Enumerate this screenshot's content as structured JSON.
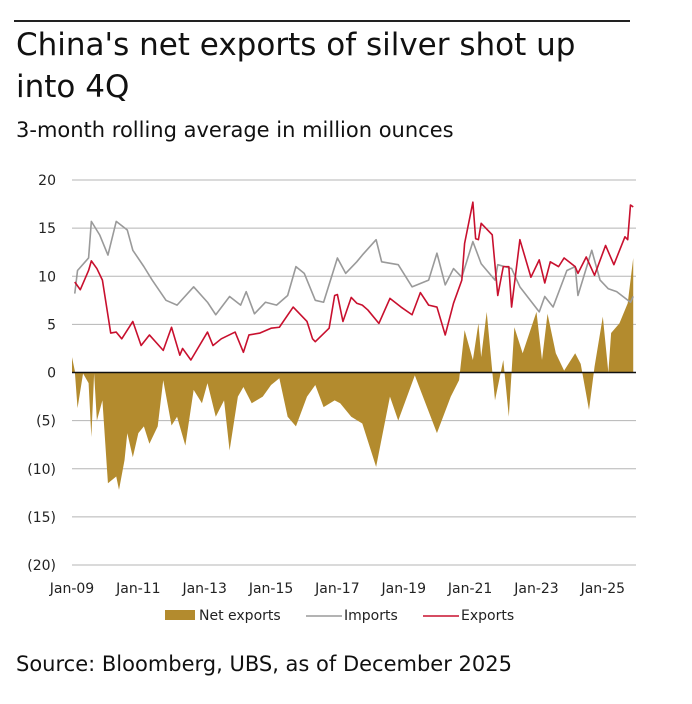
{
  "title": "China's net exports of silver shot up into 4Q",
  "subtitle": "3-month rolling average in million ounces",
  "source": "Source: Bloomberg, UBS, as of December 2025",
  "chart_data": {
    "type": "area+line",
    "title": "China's net exports of silver shot up into 4Q",
    "subtitle": "3-month rolling average in million ounces",
    "xlabel": "",
    "ylabel": "",
    "ylim": [
      -20,
      20
    ],
    "xlim": [
      "2009-01",
      "2026-01"
    ],
    "grid": true,
    "legend": "bottom",
    "y_ticks": [
      20,
      15,
      10,
      5,
      0,
      -5,
      -10,
      -15,
      -20
    ],
    "y_tick_labels": [
      "20",
      "15",
      "10",
      "5",
      "0",
      "(5)",
      "(10)",
      "(15)",
      "(20)"
    ],
    "x_ticks": [
      "2009-01",
      "2011-01",
      "2013-01",
      "2015-01",
      "2017-01",
      "2019-01",
      "2021-01",
      "2023-01",
      "2025-01"
    ],
    "x_tick_labels": [
      "Jan-09",
      "Jan-11",
      "Jan-13",
      "Jan-15",
      "Jan-17",
      "Jan-19",
      "Jan-21",
      "Jan-23",
      "Jan-25"
    ],
    "colors": {
      "net_exports": "#B38B2E",
      "imports": "#9A9A9A",
      "exports": "#C8102E"
    },
    "series": [
      {
        "name": "Net exports",
        "type": "area",
        "points": [
          [
            "2009-01",
            1.6
          ],
          [
            "2009-02",
            0.2
          ],
          [
            "2009-03",
            -3.7
          ],
          [
            "2009-05",
            -0.1
          ],
          [
            "2009-07",
            -1.1
          ],
          [
            "2009-08",
            -6.7
          ],
          [
            "2009-09",
            -0.1
          ],
          [
            "2009-10",
            -5
          ],
          [
            "2009-12",
            -2.9
          ],
          [
            "2010-02",
            -11.5
          ],
          [
            "2010-05",
            -10.8
          ],
          [
            "2010-06",
            -12.2
          ],
          [
            "2010-08",
            -9.1
          ],
          [
            "2010-09",
            -6.3
          ],
          [
            "2010-11",
            -8.8
          ],
          [
            "2011-01",
            -6.3
          ],
          [
            "2011-03",
            -5.6
          ],
          [
            "2011-05",
            -7.4
          ],
          [
            "2011-08",
            -5.6
          ],
          [
            "2011-10",
            -0.8
          ],
          [
            "2012-01",
            -5.5
          ],
          [
            "2012-03",
            -4.6
          ],
          [
            "2012-06",
            -7.6
          ],
          [
            "2012-09",
            -1.8
          ],
          [
            "2012-12",
            -3.2
          ],
          [
            "2013-02",
            -1.1
          ],
          [
            "2013-05",
            -4.6
          ],
          [
            "2013-08",
            -2.9
          ],
          [
            "2013-10",
            -8.1
          ],
          [
            "2014-01",
            -2.5
          ],
          [
            "2014-03",
            -1.5
          ],
          [
            "2014-06",
            -3.2
          ],
          [
            "2014-10",
            -2.5
          ],
          [
            "2015-01",
            -1.3
          ],
          [
            "2015-04",
            -0.6
          ],
          [
            "2015-07",
            -4.6
          ],
          [
            "2015-10",
            -5.6
          ],
          [
            "2016-02",
            -2.5
          ],
          [
            "2016-05",
            -1.3
          ],
          [
            "2016-08",
            -3.6
          ],
          [
            "2016-12",
            -2.9
          ],
          [
            "2017-02",
            -3.2
          ],
          [
            "2017-06",
            -4.6
          ],
          [
            "2017-10",
            -5.3
          ],
          [
            "2018-03",
            -9.8
          ],
          [
            "2018-08",
            -2.5
          ],
          [
            "2018-11",
            -5
          ],
          [
            "2019-05",
            -0.3
          ],
          [
            "2019-07",
            -1.8
          ],
          [
            "2020-01",
            -6.3
          ],
          [
            "2020-06",
            -2.5
          ],
          [
            "2020-09",
            -0.8
          ],
          [
            "2020-11",
            4.4
          ],
          [
            "2021-02",
            1.3
          ],
          [
            "2021-04",
            5.1
          ],
          [
            "2021-05",
            1.6
          ],
          [
            "2021-07",
            6.3
          ],
          [
            "2021-10",
            -2.9
          ],
          [
            "2022-01",
            1.3
          ],
          [
            "2022-03",
            -4.6
          ],
          [
            "2022-05",
            4.7
          ],
          [
            "2022-08",
            2
          ],
          [
            "2023-01",
            6.3
          ],
          [
            "2023-03",
            1.3
          ],
          [
            "2023-05",
            6.1
          ],
          [
            "2023-08",
            2
          ],
          [
            "2023-11",
            0.2
          ],
          [
            "2024-03",
            2
          ],
          [
            "2024-05",
            0.9
          ],
          [
            "2024-08",
            -3.9
          ],
          [
            "2024-10",
            0.6
          ],
          [
            "2025-01",
            5.8
          ],
          [
            "2025-03",
            0
          ],
          [
            "2025-04",
            4.1
          ],
          [
            "2025-07",
            5.1
          ],
          [
            "2025-10",
            7.2
          ],
          [
            "2025-12",
            11.9
          ]
        ]
      },
      {
        "name": "Imports",
        "type": "line",
        "points": [
          [
            "2009-02",
            8.2
          ],
          [
            "2009-03",
            10.6
          ],
          [
            "2009-07",
            11.9
          ],
          [
            "2009-08",
            15.7
          ],
          [
            "2009-11",
            14.3
          ],
          [
            "2010-02",
            12.2
          ],
          [
            "2010-05",
            15.7
          ],
          [
            "2010-09",
            14.8
          ],
          [
            "2010-11",
            12.7
          ],
          [
            "2011-03",
            11
          ],
          [
            "2011-06",
            9.6
          ],
          [
            "2011-11",
            7.5
          ],
          [
            "2012-03",
            7
          ],
          [
            "2012-09",
            8.9
          ],
          [
            "2013-02",
            7.3
          ],
          [
            "2013-05",
            6
          ],
          [
            "2013-10",
            7.9
          ],
          [
            "2014-02",
            7
          ],
          [
            "2014-04",
            8.4
          ],
          [
            "2014-07",
            6.1
          ],
          [
            "2014-11",
            7.3
          ],
          [
            "2015-03",
            7
          ],
          [
            "2015-07",
            8
          ],
          [
            "2015-10",
            11
          ],
          [
            "2016-01",
            10.3
          ],
          [
            "2016-05",
            7.5
          ],
          [
            "2016-08",
            7.3
          ],
          [
            "2017-01",
            11.9
          ],
          [
            "2017-04",
            10.3
          ],
          [
            "2017-08",
            11.5
          ],
          [
            "2017-10",
            12.2
          ],
          [
            "2018-03",
            13.8
          ],
          [
            "2018-05",
            11.5
          ],
          [
            "2018-11",
            11.2
          ],
          [
            "2019-04",
            8.9
          ],
          [
            "2019-10",
            9.6
          ],
          [
            "2020-01",
            12.4
          ],
          [
            "2020-04",
            9.1
          ],
          [
            "2020-07",
            10.8
          ],
          [
            "2020-10",
            9.9
          ],
          [
            "2021-02",
            13.6
          ],
          [
            "2021-05",
            11.3
          ],
          [
            "2021-10",
            9.6
          ],
          [
            "2021-11",
            11.2
          ],
          [
            "2022-04",
            10.8
          ],
          [
            "2022-07",
            8.9
          ],
          [
            "2023-02",
            6.3
          ],
          [
            "2023-04",
            7.9
          ],
          [
            "2023-07",
            6.8
          ],
          [
            "2023-12",
            10.6
          ],
          [
            "2024-03",
            11
          ],
          [
            "2024-04",
            8
          ],
          [
            "2024-09",
            12.7
          ],
          [
            "2024-12",
            9.6
          ],
          [
            "2025-03",
            8.7
          ],
          [
            "2025-06",
            8.4
          ],
          [
            "2025-11",
            7.3
          ],
          [
            "2025-12",
            7.9
          ]
        ]
      },
      {
        "name": "Exports",
        "type": "line",
        "points": [
          [
            "2009-02",
            9.4
          ],
          [
            "2009-04",
            8.6
          ],
          [
            "2009-07",
            10.6
          ],
          [
            "2009-08",
            11.6
          ],
          [
            "2009-10",
            10.8
          ],
          [
            "2009-12",
            9.6
          ],
          [
            "2010-03",
            4.1
          ],
          [
            "2010-05",
            4.2
          ],
          [
            "2010-07",
            3.5
          ],
          [
            "2010-11",
            5.3
          ],
          [
            "2011-02",
            2.8
          ],
          [
            "2011-05",
            3.9
          ],
          [
            "2011-10",
            2.3
          ],
          [
            "2012-01",
            4.7
          ],
          [
            "2012-04",
            1.8
          ],
          [
            "2012-05",
            2.5
          ],
          [
            "2012-08",
            1.3
          ],
          [
            "2013-02",
            4.2
          ],
          [
            "2013-04",
            2.8
          ],
          [
            "2013-07",
            3.5
          ],
          [
            "2013-12",
            4.2
          ],
          [
            "2014-03",
            2.1
          ],
          [
            "2014-05",
            3.9
          ],
          [
            "2014-09",
            4.1
          ],
          [
            "2015-01",
            4.6
          ],
          [
            "2015-04",
            4.7
          ],
          [
            "2015-09",
            6.8
          ],
          [
            "2016-02",
            5.3
          ],
          [
            "2016-04",
            3.5
          ],
          [
            "2016-05",
            3.2
          ],
          [
            "2016-10",
            4.6
          ],
          [
            "2016-12",
            8
          ],
          [
            "2017-01",
            8.1
          ],
          [
            "2017-03",
            5.3
          ],
          [
            "2017-06",
            7.8
          ],
          [
            "2017-08",
            7.2
          ],
          [
            "2017-10",
            7
          ],
          [
            "2017-12",
            6.5
          ],
          [
            "2018-04",
            5.1
          ],
          [
            "2018-08",
            7.7
          ],
          [
            "2018-12",
            6.8
          ],
          [
            "2019-04",
            6
          ],
          [
            "2019-07",
            8.3
          ],
          [
            "2019-10",
            7
          ],
          [
            "2020-01",
            6.8
          ],
          [
            "2020-04",
            3.9
          ],
          [
            "2020-07",
            7.2
          ],
          [
            "2020-10",
            9.6
          ],
          [
            "2020-11",
            13.4
          ],
          [
            "2021-02",
            17.7
          ],
          [
            "2021-03",
            13.9
          ],
          [
            "2021-04",
            13.8
          ],
          [
            "2021-05",
            15.5
          ],
          [
            "2021-09",
            14.3
          ],
          [
            "2021-11",
            8
          ],
          [
            "2022-01",
            11
          ],
          [
            "2022-03",
            11
          ],
          [
            "2022-04",
            6.8
          ],
          [
            "2022-07",
            13.8
          ],
          [
            "2022-11",
            9.9
          ],
          [
            "2023-02",
            11.7
          ],
          [
            "2023-04",
            9.3
          ],
          [
            "2023-06",
            11.5
          ],
          [
            "2023-09",
            11
          ],
          [
            "2023-11",
            11.9
          ],
          [
            "2024-03",
            11
          ],
          [
            "2024-04",
            10.3
          ],
          [
            "2024-07",
            12
          ],
          [
            "2024-10",
            10.1
          ],
          [
            "2025-02",
            13.2
          ],
          [
            "2025-05",
            11.2
          ],
          [
            "2025-09",
            14.1
          ],
          [
            "2025-10",
            13.8
          ],
          [
            "2025-11",
            17.4
          ],
          [
            "2025-12",
            17.2
          ]
        ]
      }
    ]
  }
}
